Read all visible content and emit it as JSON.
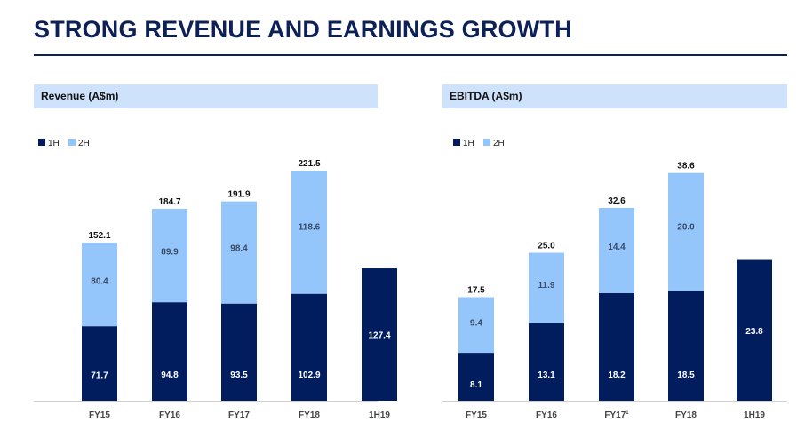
{
  "page": {
    "title": "STRONG REVENUE AND EARNINGS GROWTH"
  },
  "colors": {
    "navy": "#021d5e",
    "light_blue": "#94c6fb",
    "header_bg": "#cfe2fb",
    "title_color": "#0e2157"
  },
  "chart_data": [
    {
      "type": "bar",
      "stacked": true,
      "title": "Revenue (A$m)",
      "categories": [
        "FY15",
        "FY16",
        "FY17",
        "FY18",
        "1H19"
      ],
      "series": [
        {
          "name": "1H",
          "values": [
            71.7,
            94.8,
            93.5,
            102.9,
            127.4
          ]
        },
        {
          "name": "2H",
          "values": [
            80.4,
            89.9,
            98.4,
            118.6,
            null
          ]
        }
      ],
      "totals": [
        152.1,
        184.7,
        191.9,
        221.5,
        null
      ],
      "ylim": [
        0,
        221.5
      ],
      "grid": false,
      "legend": "top-left"
    },
    {
      "type": "bar",
      "stacked": true,
      "title": "EBITDA (A$m)",
      "categories": [
        "FY15",
        "FY16",
        "FY17",
        "FY18",
        "1H19"
      ],
      "category_footnotes": [
        "",
        "",
        "1",
        "",
        ""
      ],
      "series": [
        {
          "name": "1H",
          "values": [
            8.1,
            13.1,
            18.2,
            18.5,
            23.8
          ]
        },
        {
          "name": "2H",
          "values": [
            9.4,
            11.9,
            14.4,
            20.0,
            null
          ]
        }
      ],
      "totals": [
        17.5,
        25.0,
        32.6,
        38.6,
        null
      ],
      "ylim": [
        0,
        38.6
      ],
      "grid": false,
      "legend": "top-left"
    }
  ]
}
